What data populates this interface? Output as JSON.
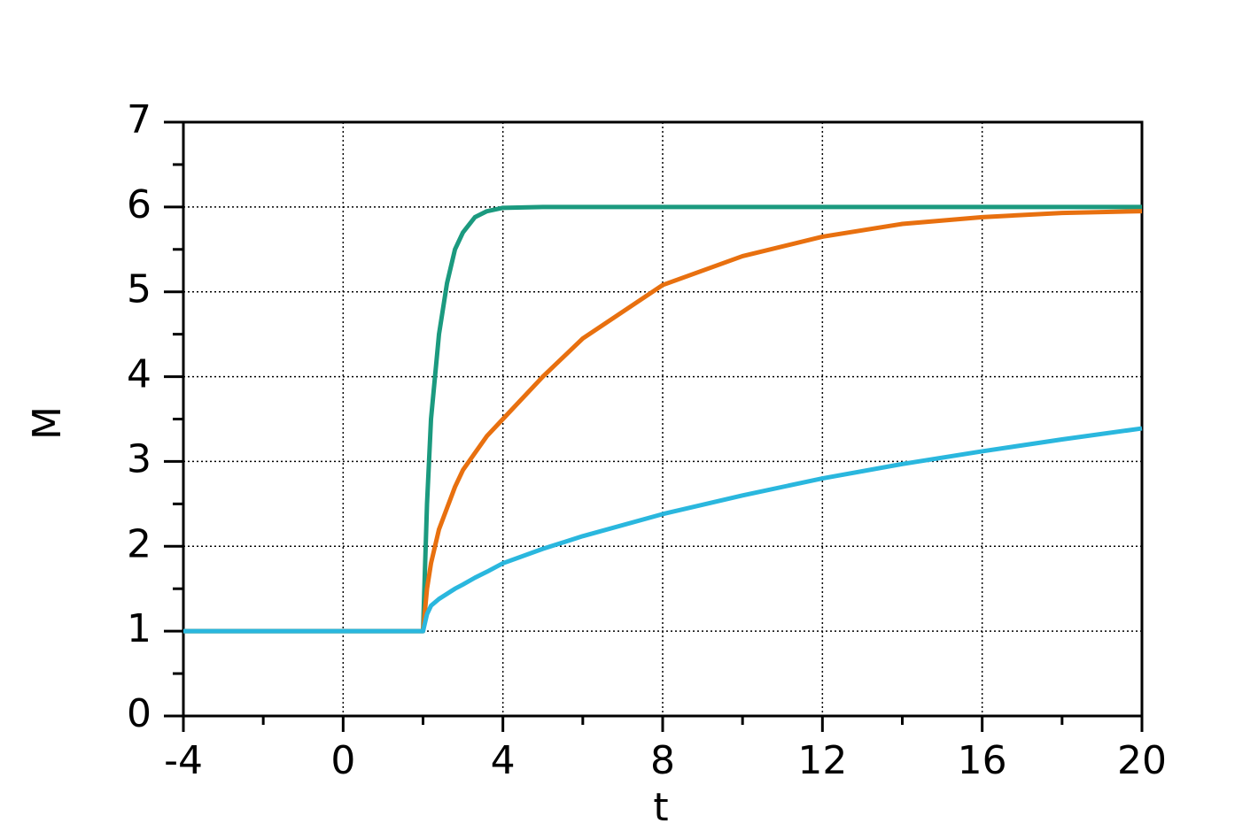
{
  "chart_data": {
    "type": "line",
    "x_label": "t",
    "y_label": "M",
    "x": [
      -4,
      2,
      2.1,
      2.2,
      2.4,
      2.6,
      2.8,
      3,
      3.3,
      3.6,
      4,
      5,
      6,
      8,
      10,
      12,
      14,
      16,
      18,
      20
    ],
    "series": [
      {
        "color": "#1b9a7f",
        "values": [
          1,
          1,
          2.5,
          3.5,
          4.5,
          5.1,
          5.5,
          5.7,
          5.88,
          5.95,
          5.99,
          6,
          6,
          6,
          6,
          6,
          6,
          6,
          6,
          6
        ]
      },
      {
        "color": "#e8700f",
        "values": [
          1,
          1,
          1.5,
          1.8,
          2.2,
          2.45,
          2.7,
          2.9,
          3.1,
          3.3,
          3.5,
          4.0,
          4.45,
          5.08,
          5.42,
          5.65,
          5.8,
          5.88,
          5.93,
          5.95
        ]
      },
      {
        "color": "#2ab7de",
        "values": [
          1,
          1,
          1.2,
          1.3,
          1.38,
          1.44,
          1.5,
          1.55,
          1.63,
          1.7,
          1.8,
          1.97,
          2.12,
          2.38,
          2.6,
          2.8,
          2.97,
          3.12,
          3.26,
          3.39
        ]
      }
    ],
    "xlim": [
      -4,
      20
    ],
    "xticks": [
      -4,
      0,
      4,
      8,
      12,
      16,
      20
    ],
    "xminorticks": [
      -2,
      2,
      6,
      10,
      14,
      18
    ],
    "ylim": [
      0,
      7
    ],
    "yticks": [
      0,
      1,
      2,
      3,
      4,
      5,
      6,
      7
    ],
    "yminorticks": [
      0.5,
      1.5,
      2.5,
      3.5,
      4.5,
      5.5,
      6.5
    ],
    "grid": true
  }
}
